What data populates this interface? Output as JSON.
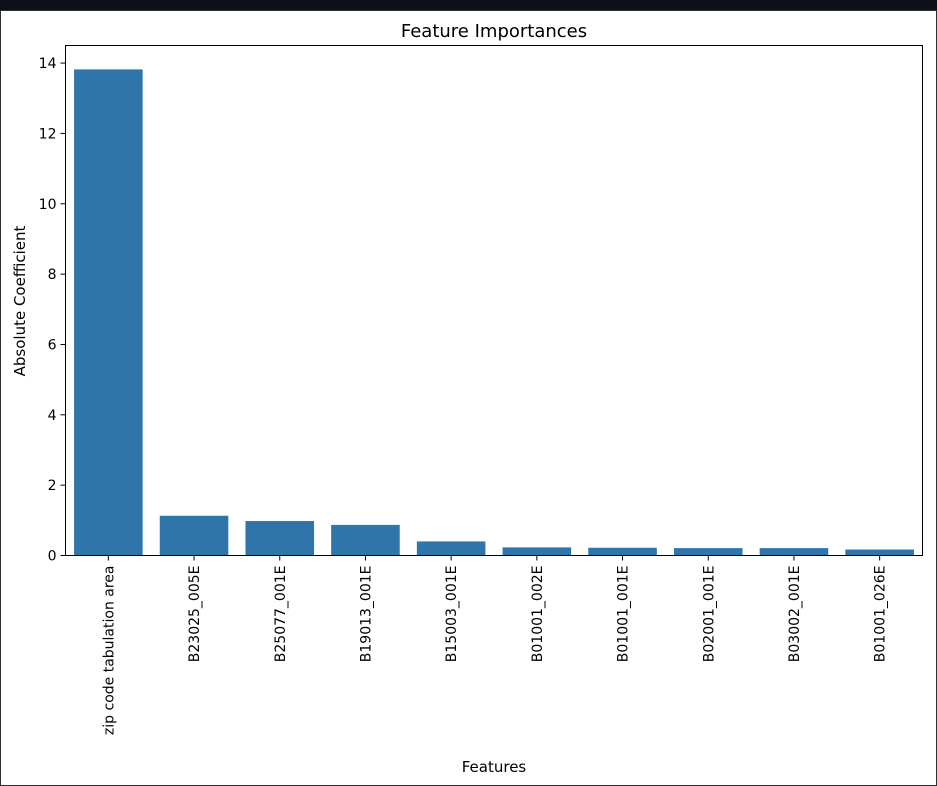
{
  "chart_data": {
    "type": "bar",
    "title": "Feature Importances",
    "xlabel": "Features",
    "ylabel": "Absolute Coefficient",
    "ylim": [
      0,
      14.5
    ],
    "yticks": [
      0,
      2,
      4,
      6,
      8,
      10,
      12,
      14
    ],
    "grid": false,
    "categories": [
      "zip code tabulation area",
      "B23025_005E",
      "B25077_001E",
      "B19013_001E",
      "B15003_001E",
      "B01001_002E",
      "B01001_001E",
      "B02001_001E",
      "B03002_001E",
      "B01001_026E"
    ],
    "values": [
      13.82,
      1.13,
      0.98,
      0.87,
      0.4,
      0.23,
      0.22,
      0.21,
      0.21,
      0.17
    ],
    "color": "#2e75a9"
  }
}
